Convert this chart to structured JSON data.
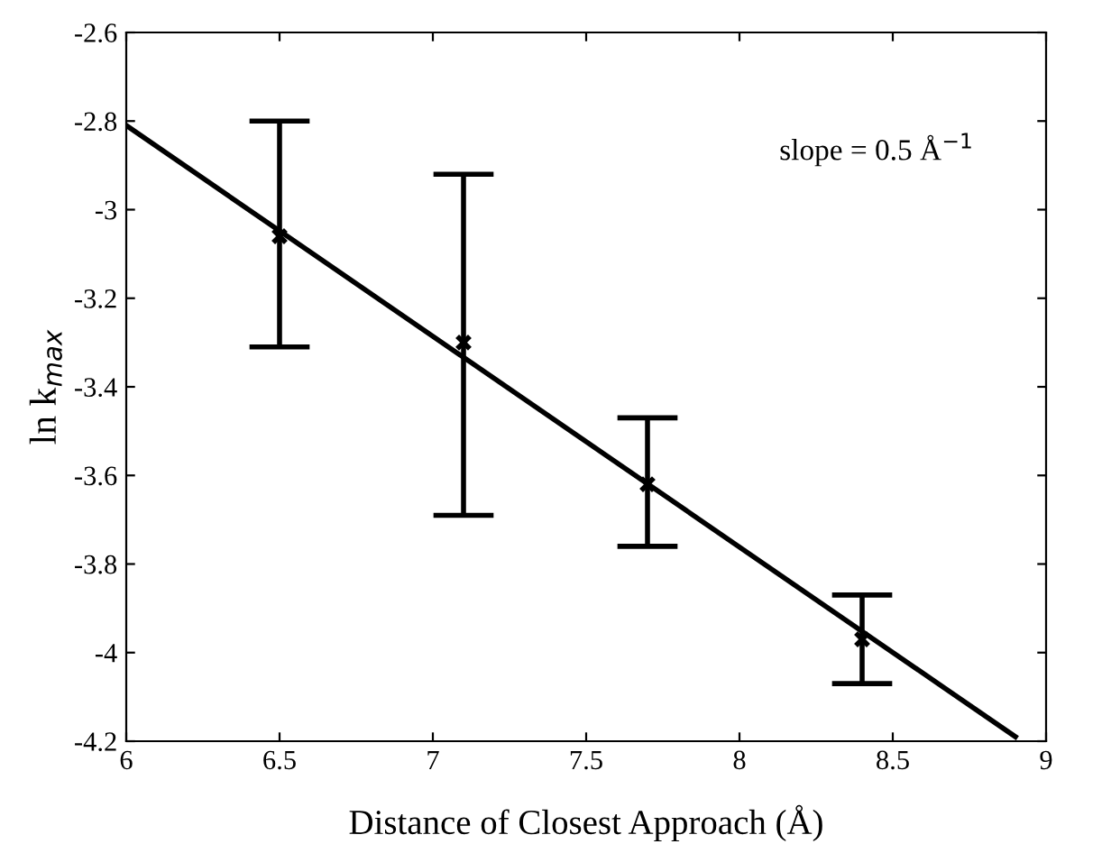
{
  "chart_data": {
    "type": "scatter",
    "xlabel": "Distance of Closest Approach (Å)",
    "ylabel": "ln k$_{max}$",
    "annotations": [
      "slope = 0.5 Å$^{−1}$"
    ],
    "xlim": [
      6,
      9
    ],
    "ylim": [
      -4.2,
      -2.6
    ],
    "xticks": [
      6,
      6.5,
      7,
      7.5,
      8,
      8.5,
      9
    ],
    "yticks": [
      -4.2,
      -4,
      -3.8,
      -3.6,
      -3.4,
      -3.2,
      -3,
      -2.8,
      -2.6
    ],
    "grid": false,
    "legend": false,
    "series": [
      {
        "color": "#000000",
        "marker": "cross",
        "x": [
          6.5,
          7.1,
          7.7,
          8.4
        ],
        "values": [
          -3.06,
          -3.3,
          -3.62,
          -3.97
        ],
        "errors": [
          [
            -3.31,
            -2.8
          ],
          [
            -3.69,
            -2.92
          ],
          [
            -3.76,
            -3.47
          ],
          [
            -4.07,
            -3.87
          ]
        ]
      },
      {
        "type": "line",
        "color": "#000000",
        "line_style": "solid",
        "marker": "none",
        "x": [
          6,
          8.9
        ],
        "values": [
          -2.81,
          -4.19
        ]
      }
    ]
  }
}
